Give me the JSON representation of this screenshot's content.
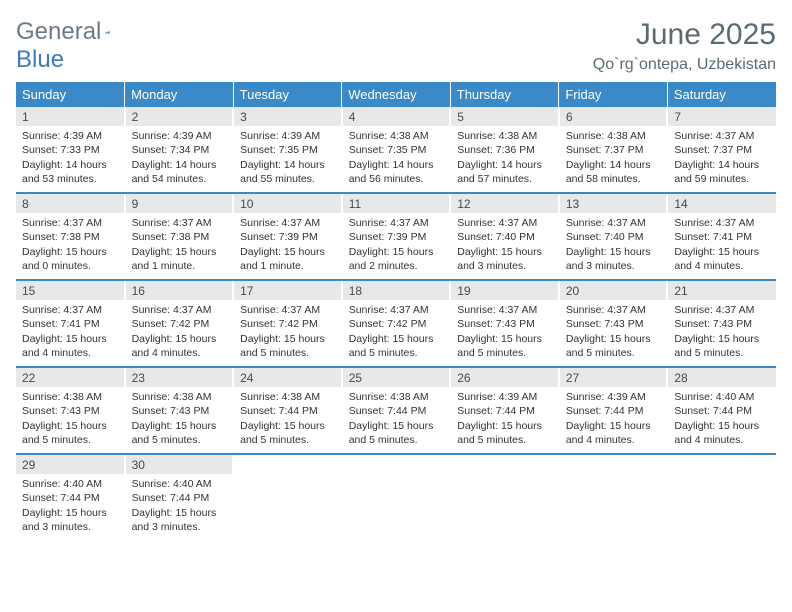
{
  "logo": {
    "general": "General",
    "blue": "Blue"
  },
  "title": "June 2025",
  "location": "Qo`rg`ontepa, Uzbekistan",
  "colors": {
    "header_bg": "#3a8ac9",
    "header_text": "#ffffff",
    "daynum_bg": "#e8e8e8",
    "text": "#333333",
    "title_text": "#5a6b76",
    "sep": "#3a8ac9",
    "logo_grey": "#6b7a86",
    "logo_blue": "#3a7bbf"
  },
  "weekdays": [
    "Sunday",
    "Monday",
    "Tuesday",
    "Wednesday",
    "Thursday",
    "Friday",
    "Saturday"
  ],
  "weeks": [
    [
      {
        "day": "1",
        "sunrise": "Sunrise: 4:39 AM",
        "sunset": "Sunset: 7:33 PM",
        "daylight": "Daylight: 14 hours and 53 minutes."
      },
      {
        "day": "2",
        "sunrise": "Sunrise: 4:39 AM",
        "sunset": "Sunset: 7:34 PM",
        "daylight": "Daylight: 14 hours and 54 minutes."
      },
      {
        "day": "3",
        "sunrise": "Sunrise: 4:39 AM",
        "sunset": "Sunset: 7:35 PM",
        "daylight": "Daylight: 14 hours and 55 minutes."
      },
      {
        "day": "4",
        "sunrise": "Sunrise: 4:38 AM",
        "sunset": "Sunset: 7:35 PM",
        "daylight": "Daylight: 14 hours and 56 minutes."
      },
      {
        "day": "5",
        "sunrise": "Sunrise: 4:38 AM",
        "sunset": "Sunset: 7:36 PM",
        "daylight": "Daylight: 14 hours and 57 minutes."
      },
      {
        "day": "6",
        "sunrise": "Sunrise: 4:38 AM",
        "sunset": "Sunset: 7:37 PM",
        "daylight": "Daylight: 14 hours and 58 minutes."
      },
      {
        "day": "7",
        "sunrise": "Sunrise: 4:37 AM",
        "sunset": "Sunset: 7:37 PM",
        "daylight": "Daylight: 14 hours and 59 minutes."
      }
    ],
    [
      {
        "day": "8",
        "sunrise": "Sunrise: 4:37 AM",
        "sunset": "Sunset: 7:38 PM",
        "daylight": "Daylight: 15 hours and 0 minutes."
      },
      {
        "day": "9",
        "sunrise": "Sunrise: 4:37 AM",
        "sunset": "Sunset: 7:38 PM",
        "daylight": "Daylight: 15 hours and 1 minute."
      },
      {
        "day": "10",
        "sunrise": "Sunrise: 4:37 AM",
        "sunset": "Sunset: 7:39 PM",
        "daylight": "Daylight: 15 hours and 1 minute."
      },
      {
        "day": "11",
        "sunrise": "Sunrise: 4:37 AM",
        "sunset": "Sunset: 7:39 PM",
        "daylight": "Daylight: 15 hours and 2 minutes."
      },
      {
        "day": "12",
        "sunrise": "Sunrise: 4:37 AM",
        "sunset": "Sunset: 7:40 PM",
        "daylight": "Daylight: 15 hours and 3 minutes."
      },
      {
        "day": "13",
        "sunrise": "Sunrise: 4:37 AM",
        "sunset": "Sunset: 7:40 PM",
        "daylight": "Daylight: 15 hours and 3 minutes."
      },
      {
        "day": "14",
        "sunrise": "Sunrise: 4:37 AM",
        "sunset": "Sunset: 7:41 PM",
        "daylight": "Daylight: 15 hours and 4 minutes."
      }
    ],
    [
      {
        "day": "15",
        "sunrise": "Sunrise: 4:37 AM",
        "sunset": "Sunset: 7:41 PM",
        "daylight": "Daylight: 15 hours and 4 minutes."
      },
      {
        "day": "16",
        "sunrise": "Sunrise: 4:37 AM",
        "sunset": "Sunset: 7:42 PM",
        "daylight": "Daylight: 15 hours and 4 minutes."
      },
      {
        "day": "17",
        "sunrise": "Sunrise: 4:37 AM",
        "sunset": "Sunset: 7:42 PM",
        "daylight": "Daylight: 15 hours and 5 minutes."
      },
      {
        "day": "18",
        "sunrise": "Sunrise: 4:37 AM",
        "sunset": "Sunset: 7:42 PM",
        "daylight": "Daylight: 15 hours and 5 minutes."
      },
      {
        "day": "19",
        "sunrise": "Sunrise: 4:37 AM",
        "sunset": "Sunset: 7:43 PM",
        "daylight": "Daylight: 15 hours and 5 minutes."
      },
      {
        "day": "20",
        "sunrise": "Sunrise: 4:37 AM",
        "sunset": "Sunset: 7:43 PM",
        "daylight": "Daylight: 15 hours and 5 minutes."
      },
      {
        "day": "21",
        "sunrise": "Sunrise: 4:37 AM",
        "sunset": "Sunset: 7:43 PM",
        "daylight": "Daylight: 15 hours and 5 minutes."
      }
    ],
    [
      {
        "day": "22",
        "sunrise": "Sunrise: 4:38 AM",
        "sunset": "Sunset: 7:43 PM",
        "daylight": "Daylight: 15 hours and 5 minutes."
      },
      {
        "day": "23",
        "sunrise": "Sunrise: 4:38 AM",
        "sunset": "Sunset: 7:43 PM",
        "daylight": "Daylight: 15 hours and 5 minutes."
      },
      {
        "day": "24",
        "sunrise": "Sunrise: 4:38 AM",
        "sunset": "Sunset: 7:44 PM",
        "daylight": "Daylight: 15 hours and 5 minutes."
      },
      {
        "day": "25",
        "sunrise": "Sunrise: 4:38 AM",
        "sunset": "Sunset: 7:44 PM",
        "daylight": "Daylight: 15 hours and 5 minutes."
      },
      {
        "day": "26",
        "sunrise": "Sunrise: 4:39 AM",
        "sunset": "Sunset: 7:44 PM",
        "daylight": "Daylight: 15 hours and 5 minutes."
      },
      {
        "day": "27",
        "sunrise": "Sunrise: 4:39 AM",
        "sunset": "Sunset: 7:44 PM",
        "daylight": "Daylight: 15 hours and 4 minutes."
      },
      {
        "day": "28",
        "sunrise": "Sunrise: 4:40 AM",
        "sunset": "Sunset: 7:44 PM",
        "daylight": "Daylight: 15 hours and 4 minutes."
      }
    ],
    [
      {
        "day": "29",
        "sunrise": "Sunrise: 4:40 AM",
        "sunset": "Sunset: 7:44 PM",
        "daylight": "Daylight: 15 hours and 3 minutes."
      },
      {
        "day": "30",
        "sunrise": "Sunrise: 4:40 AM",
        "sunset": "Sunset: 7:44 PM",
        "daylight": "Daylight: 15 hours and 3 minutes."
      },
      null,
      null,
      null,
      null,
      null
    ]
  ]
}
